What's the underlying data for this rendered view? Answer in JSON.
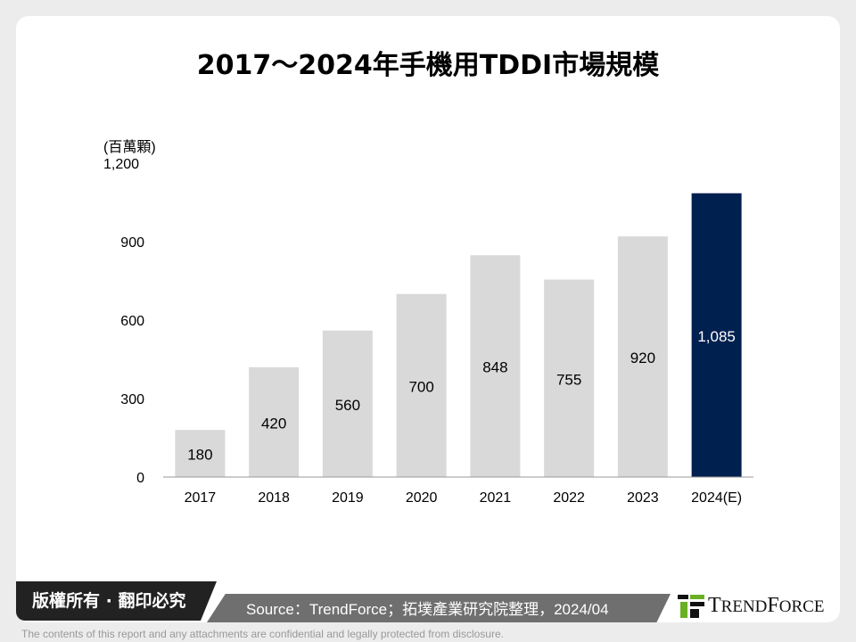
{
  "title": "2017～2024年手機用TDDI市場規模",
  "chart_data": {
    "type": "bar",
    "title": "2017～2024年手機用TDDI市場規模",
    "ylabel": "(百萬顆)",
    "categories": [
      "2017",
      "2018",
      "2019",
      "2020",
      "2021",
      "2022",
      "2023",
      "2024(E)"
    ],
    "values": [
      180,
      420,
      560,
      700,
      848,
      755,
      920,
      1085
    ],
    "data_labels": [
      "180",
      "420",
      "560",
      "700",
      "848",
      "755",
      "920",
      "1,085"
    ],
    "yticks": [
      "0",
      "300",
      "600",
      "900",
      "1,200"
    ],
    "ylim": [
      0,
      1200
    ],
    "grid": false,
    "colors": {
      "default": "#d9d9d9",
      "highlight": "#002050"
    }
  },
  "footer": {
    "copyright": "版權所有 · 翻印必究",
    "source": "Source：TrendForce；拓墣產業研究院整理，2024/04",
    "logo": "TrendForce",
    "disclaimer": "The contents of this report and any attachments are confidential and legally protected from disclosure."
  }
}
